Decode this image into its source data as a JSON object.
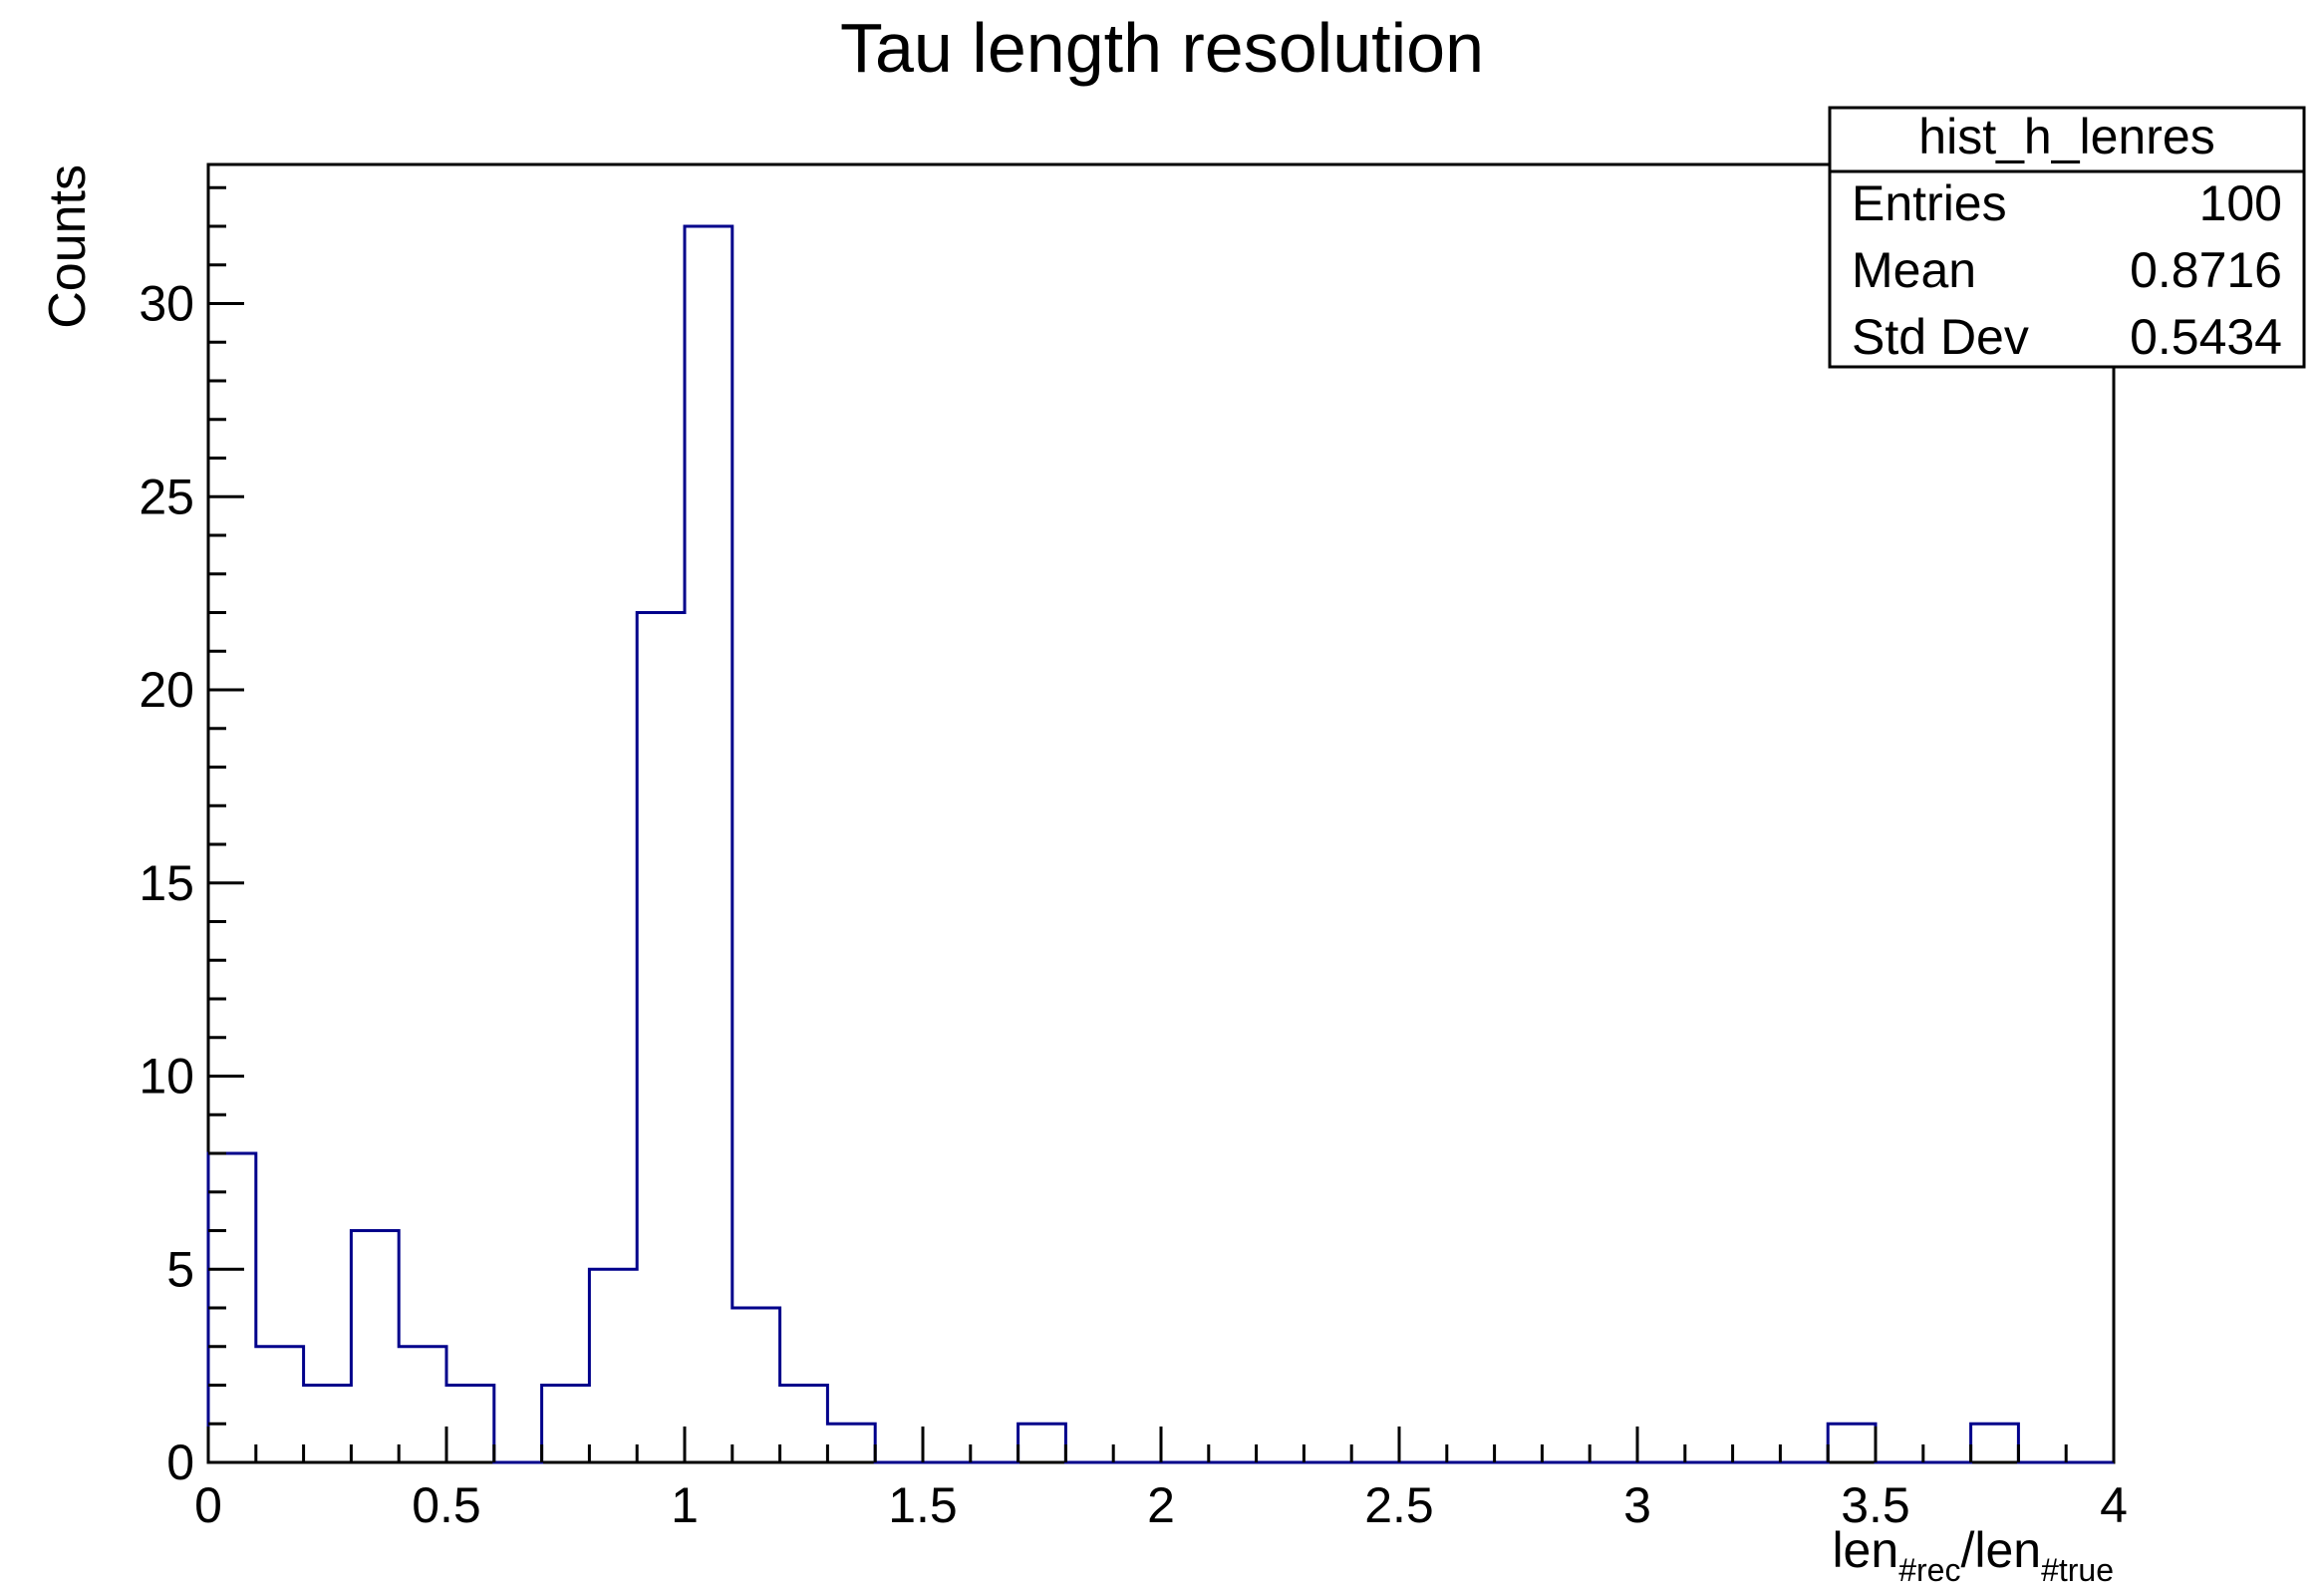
{
  "chart_data": {
    "type": "bar",
    "title": "Tau length resolution",
    "xlabel": {
      "base1": "len",
      "sub1": "#rec",
      "sep": "/len",
      "sub2": "#true"
    },
    "ylabel": "Counts",
    "xlim": [
      0,
      4
    ],
    "ylim": [
      0,
      33.6
    ],
    "bin_width": 0.1,
    "bin_edges_start": 0,
    "values": [
      8,
      3,
      2,
      6,
      3,
      2,
      0,
      2,
      5,
      22,
      32,
      4,
      2,
      1,
      0,
      0,
      0,
      1,
      0,
      0,
      0,
      0,
      0,
      0,
      0,
      0,
      0,
      0,
      0,
      0,
      0,
      0,
      0,
      0,
      1,
      0,
      0,
      1,
      0,
      0
    ],
    "x_ticks": [
      {
        "value": 0,
        "label": "0"
      },
      {
        "value": 0.5,
        "label": "0.5"
      },
      {
        "value": 1,
        "label": "1"
      },
      {
        "value": 1.5,
        "label": "1.5"
      },
      {
        "value": 2,
        "label": "2"
      },
      {
        "value": 2.5,
        "label": "2.5"
      },
      {
        "value": 3,
        "label": "3"
      },
      {
        "value": 3.5,
        "label": "3.5"
      },
      {
        "value": 4,
        "label": "4"
      }
    ],
    "y_ticks": [
      {
        "value": 0,
        "label": "0"
      },
      {
        "value": 5,
        "label": "5"
      },
      {
        "value": 10,
        "label": "10"
      },
      {
        "value": 15,
        "label": "15"
      },
      {
        "value": 20,
        "label": "20"
      },
      {
        "value": 25,
        "label": "25"
      },
      {
        "value": 30,
        "label": "30"
      }
    ],
    "line_color": "#00008b",
    "grid": false,
    "legend_position": "top-right",
    "stats": {
      "name": "hist_h_lenres",
      "rows": [
        {
          "label": "Entries",
          "value": "100"
        },
        {
          "label": "Mean",
          "value": "0.8716"
        },
        {
          "label": "Std Dev",
          "value": "0.5434"
        }
      ]
    }
  }
}
